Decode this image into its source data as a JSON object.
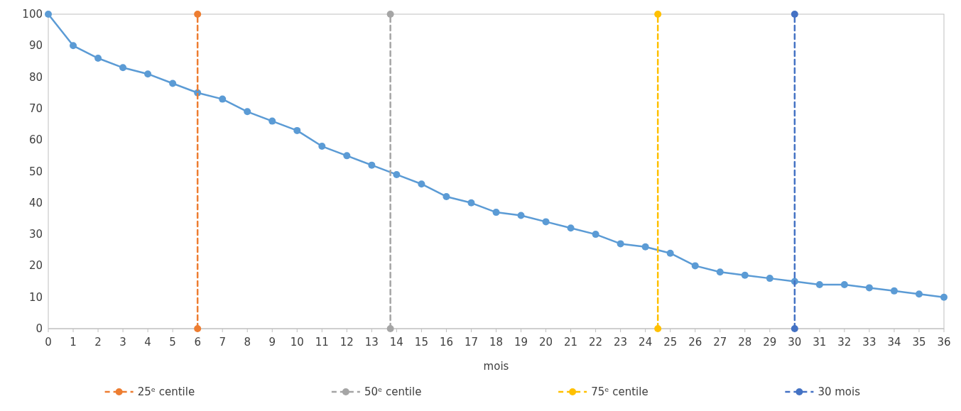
{
  "chart_data": {
    "type": "line",
    "xlabel": "mois",
    "xlim": [
      0,
      36
    ],
    "xticks": [
      0,
      1,
      2,
      3,
      4,
      5,
      6,
      7,
      8,
      9,
      10,
      11,
      12,
      13,
      14,
      15,
      16,
      17,
      18,
      19,
      20,
      21,
      22,
      23,
      24,
      25,
      26,
      27,
      28,
      29,
      30,
      31,
      32,
      33,
      34,
      35,
      36
    ],
    "ylim": [
      0,
      100
    ],
    "yticks": [
      0,
      10,
      20,
      30,
      40,
      50,
      60,
      70,
      80,
      90,
      100
    ],
    "grid": false,
    "legend": "bottom",
    "marker": "circle",
    "series": [
      {
        "color": "#5b9bd5",
        "line_style": "solid",
        "x": [
          0,
          1,
          2,
          3,
          4,
          5,
          6,
          7,
          8,
          9,
          10,
          11,
          12,
          13,
          14,
          15,
          16,
          17,
          18,
          19,
          20,
          21,
          22,
          23,
          24,
          25,
          26,
          27,
          28,
          29,
          30,
          31,
          32,
          33,
          34,
          35,
          36
        ],
        "values": [
          100,
          90,
          86,
          83,
          81,
          78,
          75,
          73,
          69,
          66,
          63,
          58,
          55,
          52,
          49,
          46,
          42,
          40,
          37,
          36,
          34,
          32,
          30,
          27,
          26,
          24,
          20,
          18,
          17,
          16,
          15,
          14,
          14,
          13,
          12,
          11,
          10
        ]
      },
      {
        "name": "25ᵉ centile",
        "color": "#ed7d31",
        "line_style": "dashed",
        "x": [
          6,
          6
        ],
        "values": [
          0,
          100
        ]
      },
      {
        "name": "50ᵉ centile",
        "color": "#a5a5a5",
        "line_style": "dashed",
        "x": [
          13.75,
          13.75
        ],
        "values": [
          0,
          100
        ]
      },
      {
        "name": "75ᵉ centile",
        "color": "#ffc000",
        "line_style": "dashed",
        "x": [
          24.5,
          24.5
        ],
        "values": [
          0,
          100
        ]
      },
      {
        "name": "30 mois",
        "color": "#4472c4",
        "line_style": "dashed",
        "x": [
          30,
          30
        ],
        "values": [
          0,
          100
        ]
      }
    ]
  }
}
